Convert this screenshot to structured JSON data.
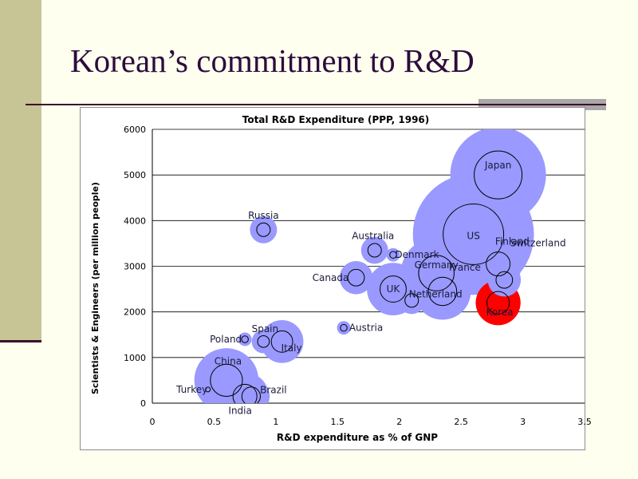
{
  "slide": {
    "title": "Korean’s commitment to R&D"
  },
  "chart_data": {
    "type": "scatter",
    "title": "Total R&D Expenditure (PPP, 1996)",
    "xlabel": "R&D expenditure as % of GNP",
    "ylabel": "Scientists & Engineers (per million people)",
    "xlim": [
      0,
      3.5
    ],
    "ylim": [
      0,
      6000
    ],
    "xticks": [
      "0",
      "0.5",
      "1",
      "1.5",
      "2",
      "2.5",
      "3",
      "3.5"
    ],
    "yticks": [
      "0",
      "1000",
      "2000",
      "3000",
      "4000",
      "5000",
      "6000"
    ],
    "grid": true,
    "colors": {
      "bubble": "#9999ff",
      "korea": "#ff0000",
      "gridline": "#000000"
    },
    "points": [
      {
        "name": "Japan",
        "x": 2.8,
        "y": 5000,
        "size": 1.0
      },
      {
        "name": "US",
        "x": 2.6,
        "y": 3700,
        "size": 1.6
      },
      {
        "name": "Switzerland",
        "x": 2.8,
        "y": 3050,
        "size": 0.25
      },
      {
        "name": "Finland",
        "x": 2.85,
        "y": 2700,
        "size": 0.12
      },
      {
        "name": "Korea",
        "x": 2.8,
        "y": 2200,
        "size": 0.22,
        "highlight": true
      },
      {
        "name": "Germany",
        "x": 2.3,
        "y": 2850,
        "size": 0.55
      },
      {
        "name": "France",
        "x": 2.35,
        "y": 2450,
        "size": 0.35
      },
      {
        "name": "Netherland",
        "x": 2.1,
        "y": 2250,
        "size": 0.08
      },
      {
        "name": "UK",
        "x": 1.95,
        "y": 2500,
        "size": 0.3
      },
      {
        "name": "Denmark",
        "x": 1.95,
        "y": 3250,
        "size": 0.02
      },
      {
        "name": "Australia",
        "x": 1.8,
        "y": 3350,
        "size": 0.08
      },
      {
        "name": "Canada",
        "x": 1.65,
        "y": 2750,
        "size": 0.12
      },
      {
        "name": "Austria",
        "x": 1.55,
        "y": 1650,
        "size": 0.02
      },
      {
        "name": "Russia",
        "x": 0.9,
        "y": 3800,
        "size": 0.08
      },
      {
        "name": "Spain",
        "x": 0.9,
        "y": 1350,
        "size": 0.06
      },
      {
        "name": "Italy",
        "x": 1.05,
        "y": 1350,
        "size": 0.2
      },
      {
        "name": "Poland",
        "x": 0.75,
        "y": 1400,
        "size": 0.02
      },
      {
        "name": "China",
        "x": 0.6,
        "y": 500,
        "size": 0.45
      },
      {
        "name": "India",
        "x": 0.75,
        "y": 150,
        "size": 0.25
      },
      {
        "name": "Brazil",
        "x": 0.8,
        "y": 150,
        "size": 0.15
      },
      {
        "name": "Turkey",
        "x": 0.45,
        "y": 300,
        "size": 0.01
      }
    ]
  }
}
